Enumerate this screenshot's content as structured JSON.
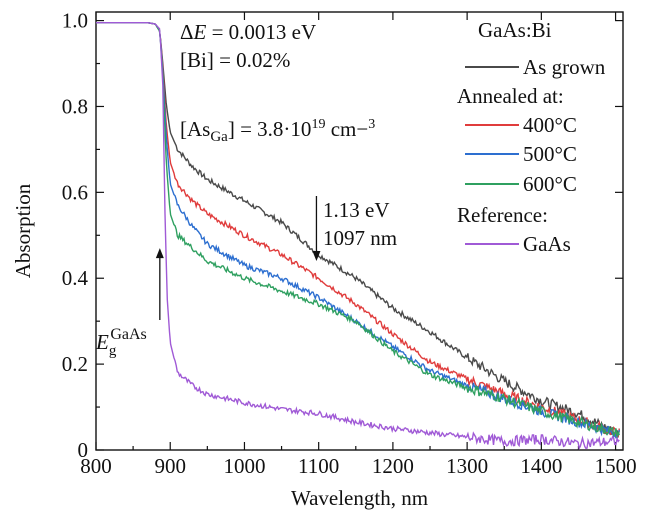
{
  "chart_data": {
    "type": "line",
    "xlabel": "Wavelength, nm",
    "ylabel": "Absorption",
    "xlim": [
      800,
      1510
    ],
    "ylim": [
      0,
      1.02
    ],
    "xticks": [
      "800",
      "900",
      "1000",
      "1100",
      "1200",
      "1300",
      "1400",
      "1500"
    ],
    "yticks": [
      "0",
      "0.2",
      "0.4",
      "0.6",
      "0.8",
      "1.0"
    ],
    "legend": {
      "title": "GaAs:Bi",
      "group_annealed": "Annealed at:",
      "group_reference": "Reference:"
    },
    "series": [
      {
        "name": "As grown",
        "color": "#4a4a4a",
        "points": [
          [
            800,
            0.995
          ],
          [
            870,
            0.995
          ],
          [
            880,
            0.992
          ],
          [
            886,
            0.975
          ],
          [
            890,
            0.9
          ],
          [
            895,
            0.8
          ],
          [
            900,
            0.74
          ],
          [
            910,
            0.7
          ],
          [
            930,
            0.66
          ],
          [
            950,
            0.63
          ],
          [
            1000,
            0.58
          ],
          [
            1050,
            0.53
          ],
          [
            1100,
            0.455
          ],
          [
            1150,
            0.4
          ],
          [
            1200,
            0.33
          ],
          [
            1250,
            0.275
          ],
          [
            1300,
            0.215
          ],
          [
            1350,
            0.16
          ],
          [
            1400,
            0.115
          ],
          [
            1450,
            0.085
          ],
          [
            1500,
            0.04
          ]
        ]
      },
      {
        "name": "400°C",
        "color": "#e03c3c",
        "points": [
          [
            800,
            0.995
          ],
          [
            870,
            0.995
          ],
          [
            880,
            0.992
          ],
          [
            886,
            0.975
          ],
          [
            890,
            0.89
          ],
          [
            895,
            0.75
          ],
          [
            900,
            0.67
          ],
          [
            910,
            0.62
          ],
          [
            930,
            0.58
          ],
          [
            950,
            0.55
          ],
          [
            1000,
            0.5
          ],
          [
            1050,
            0.455
          ],
          [
            1100,
            0.4
          ],
          [
            1150,
            0.34
          ],
          [
            1200,
            0.27
          ],
          [
            1250,
            0.205
          ],
          [
            1300,
            0.165
          ],
          [
            1350,
            0.13
          ],
          [
            1400,
            0.1
          ],
          [
            1450,
            0.07
          ],
          [
            1500,
            0.04
          ]
        ]
      },
      {
        "name": "500°C",
        "color": "#2d6fd0",
        "points": [
          [
            800,
            0.995
          ],
          [
            870,
            0.995
          ],
          [
            880,
            0.992
          ],
          [
            886,
            0.975
          ],
          [
            890,
            0.88
          ],
          [
            895,
            0.72
          ],
          [
            900,
            0.62
          ],
          [
            910,
            0.57
          ],
          [
            930,
            0.52
          ],
          [
            950,
            0.48
          ],
          [
            1000,
            0.43
          ],
          [
            1050,
            0.4
          ],
          [
            1100,
            0.355
          ],
          [
            1150,
            0.3
          ],
          [
            1200,
            0.24
          ],
          [
            1250,
            0.185
          ],
          [
            1300,
            0.15
          ],
          [
            1350,
            0.12
          ],
          [
            1400,
            0.09
          ],
          [
            1450,
            0.065
          ],
          [
            1500,
            0.04
          ]
        ]
      },
      {
        "name": "600°C",
        "color": "#2fa060",
        "points": [
          [
            800,
            0.995
          ],
          [
            870,
            0.995
          ],
          [
            880,
            0.992
          ],
          [
            886,
            0.975
          ],
          [
            890,
            0.87
          ],
          [
            895,
            0.66
          ],
          [
            900,
            0.55
          ],
          [
            910,
            0.5
          ],
          [
            930,
            0.47
          ],
          [
            950,
            0.44
          ],
          [
            1000,
            0.4
          ],
          [
            1050,
            0.37
          ],
          [
            1100,
            0.34
          ],
          [
            1150,
            0.3
          ],
          [
            1200,
            0.23
          ],
          [
            1250,
            0.175
          ],
          [
            1300,
            0.145
          ],
          [
            1350,
            0.12
          ],
          [
            1400,
            0.09
          ],
          [
            1450,
            0.065
          ],
          [
            1500,
            0.04
          ]
        ]
      },
      {
        "name": "GaAs",
        "color": "#a05ad6",
        "points": [
          [
            800,
            0.995
          ],
          [
            870,
            0.995
          ],
          [
            880,
            0.992
          ],
          [
            886,
            0.98
          ],
          [
            890,
            0.85
          ],
          [
            893,
            0.55
          ],
          [
            896,
            0.35
          ],
          [
            900,
            0.25
          ],
          [
            910,
            0.18
          ],
          [
            930,
            0.15
          ],
          [
            950,
            0.13
          ],
          [
            1000,
            0.11
          ],
          [
            1050,
            0.095
          ],
          [
            1100,
            0.085
          ],
          [
            1150,
            0.065
          ],
          [
            1200,
            0.05
          ],
          [
            1250,
            0.04
          ],
          [
            1300,
            0.03
          ],
          [
            1350,
            0.02
          ],
          [
            1400,
            0.025
          ],
          [
            1450,
            0.015
          ],
          [
            1500,
            0.02
          ]
        ]
      }
    ],
    "annotations": {
      "delta_e": "ΔE = 0.0013 eV",
      "bi_conc": "[Bi] = 0.02%",
      "as_ga": "[AsGa] = 3.8·1019 cm−3",
      "energy_label": "1.13 eV",
      "wavelength_label": "1097 nm",
      "gap_label": "EgGaAs",
      "arrow_energy_x": 1097,
      "arrow_energy_y": 0.44,
      "arrow_gap_x": 886,
      "arrow_gap_y": 0.47
    }
  }
}
